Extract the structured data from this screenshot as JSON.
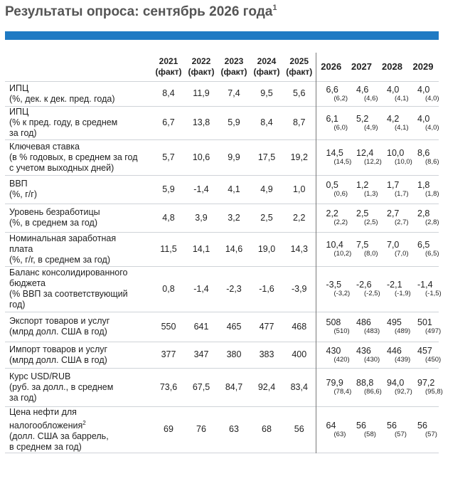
{
  "title": "Результаты опроса: сентябрь 2026 года",
  "title_footnote": "1",
  "accent_color": "#1f7ac3",
  "header": {
    "hist_years": [
      {
        "year": "2021",
        "note": "(факт)"
      },
      {
        "year": "2022",
        "note": "(факт)"
      },
      {
        "year": "2023",
        "note": "(факт)"
      },
      {
        "year": "2024",
        "note": "(факт)"
      },
      {
        "year": "2025",
        "note": "(факт)"
      }
    ],
    "fc_years": [
      "2026",
      "2027",
      "2028",
      "2029"
    ]
  },
  "rows": [
    {
      "label": [
        "ИПЦ",
        "(%, дек. к дек. пред. года)"
      ],
      "hist": [
        "8,4",
        "11,9",
        "7,4",
        "9,5",
        "5,6"
      ],
      "fc": [
        [
          "6,6",
          "(6,2)"
        ],
        [
          "4,6",
          "(4,6)"
        ],
        [
          "4,0",
          "(4,1)"
        ],
        [
          "4,0",
          "(4,0)"
        ]
      ]
    },
    {
      "label": [
        "ИПЦ",
        "(% к пред. году, в среднем",
        "за год)"
      ],
      "hist": [
        "6,7",
        "13,8",
        "5,9",
        "8,4",
        "8,7"
      ],
      "fc": [
        [
          "6,1",
          "(6,0)"
        ],
        [
          "5,2",
          "(4,9)"
        ],
        [
          "4,2",
          "(4,1)"
        ],
        [
          "4,0",
          "(4,0)"
        ]
      ]
    },
    {
      "label": [
        "Ключевая ставка",
        "(в % годовых, в среднем за год",
        "с учетом выходных дней)"
      ],
      "hist": [
        "5,7",
        "10,6",
        "9,9",
        "17,5",
        "19,2"
      ],
      "fc": [
        [
          "14,5",
          "(14,5)"
        ],
        [
          "12,4",
          "(12,2)"
        ],
        [
          "10,0",
          "(10,0)"
        ],
        [
          "8,6",
          "(8,6)"
        ]
      ]
    },
    {
      "label": [
        "ВВП",
        "(%, г/г)"
      ],
      "hist": [
        "5,9",
        "-1,4",
        "4,1",
        "4,9",
        "1,0"
      ],
      "fc": [
        [
          "0,5",
          "(0,6)"
        ],
        [
          "1,2",
          "(1,3)"
        ],
        [
          "1,7",
          "(1,7)"
        ],
        [
          "1,8",
          "(1,8)"
        ]
      ]
    },
    {
      "label": [
        "Уровень безработицы",
        "(%, в среднем за год)"
      ],
      "hist": [
        "4,8",
        "3,9",
        "3,2",
        "2,5",
        "2,2"
      ],
      "fc": [
        [
          "2,2",
          "(2,2)"
        ],
        [
          "2,5",
          "(2,5)"
        ],
        [
          "2,7",
          "(2,7)"
        ],
        [
          "2,8",
          "(2,8)"
        ]
      ]
    },
    {
      "label": [
        "Номинальная заработная",
        "плата",
        "(%, г/г, в среднем за год)"
      ],
      "hist": [
        "11,5",
        "14,1",
        "14,6",
        "19,0",
        "14,3"
      ],
      "fc": [
        [
          "10,4",
          "(10,2)"
        ],
        [
          "7,5",
          "(8,0)"
        ],
        [
          "7,0",
          "(7,0)"
        ],
        [
          "6,5",
          "(6,5)"
        ]
      ]
    },
    {
      "label": [
        "Баланс консолидированного",
        "бюджета",
        "(% ВВП за соответствующий",
        "год)"
      ],
      "hist": [
        "0,8",
        "-1,4",
        "-2,3",
        "-1,6",
        "-3,9"
      ],
      "fc": [
        [
          "-3,5",
          "(-3,2)"
        ],
        [
          "-2,6",
          "(-2,5)"
        ],
        [
          "-2,1",
          "(-1,9)"
        ],
        [
          "-1,4",
          "(-1,5)"
        ]
      ]
    },
    {
      "label": [
        "Экспорт товаров и услуг",
        "(млрд долл. США в год)"
      ],
      "hist": [
        "550",
        "641",
        "465",
        "477",
        "468"
      ],
      "fc": [
        [
          "508",
          "(510)"
        ],
        [
          "486",
          "(483)"
        ],
        [
          "495",
          "(489)"
        ],
        [
          "501",
          "(497)"
        ]
      ]
    },
    {
      "label": [
        "Импорт товаров и услуг",
        "(млрд долл. США в год)"
      ],
      "hist": [
        "377",
        "347",
        "380",
        "383",
        "400"
      ],
      "fc": [
        [
          "430",
          "(420)"
        ],
        [
          "436",
          "(430)"
        ],
        [
          "446",
          "(439)"
        ],
        [
          "457",
          "(450)"
        ]
      ]
    },
    {
      "label": [
        "Курс USD/RUB",
        "(руб. за долл., в среднем",
        "за год)"
      ],
      "hist": [
        "73,6",
        "67,5",
        "84,7",
        "92,4",
        "83,4"
      ],
      "fc": [
        [
          "79,9",
          "(78,4)"
        ],
        [
          "88,8",
          "(86,6)"
        ],
        [
          "94,0",
          "(92,7)"
        ],
        [
          "97,2",
          "(95,8)"
        ]
      ]
    },
    {
      "label": [
        "Цена нефти для",
        "налогообложения",
        "(долл. США за баррель,",
        "в среднем за год)"
      ],
      "label_footnote": "2",
      "hist": [
        "69",
        "76",
        "63",
        "68",
        "56"
      ],
      "fc": [
        [
          "64",
          "(63)"
        ],
        [
          "56",
          "(58)"
        ],
        [
          "56",
          "(57)"
        ],
        [
          "56",
          "(57)"
        ]
      ]
    }
  ]
}
